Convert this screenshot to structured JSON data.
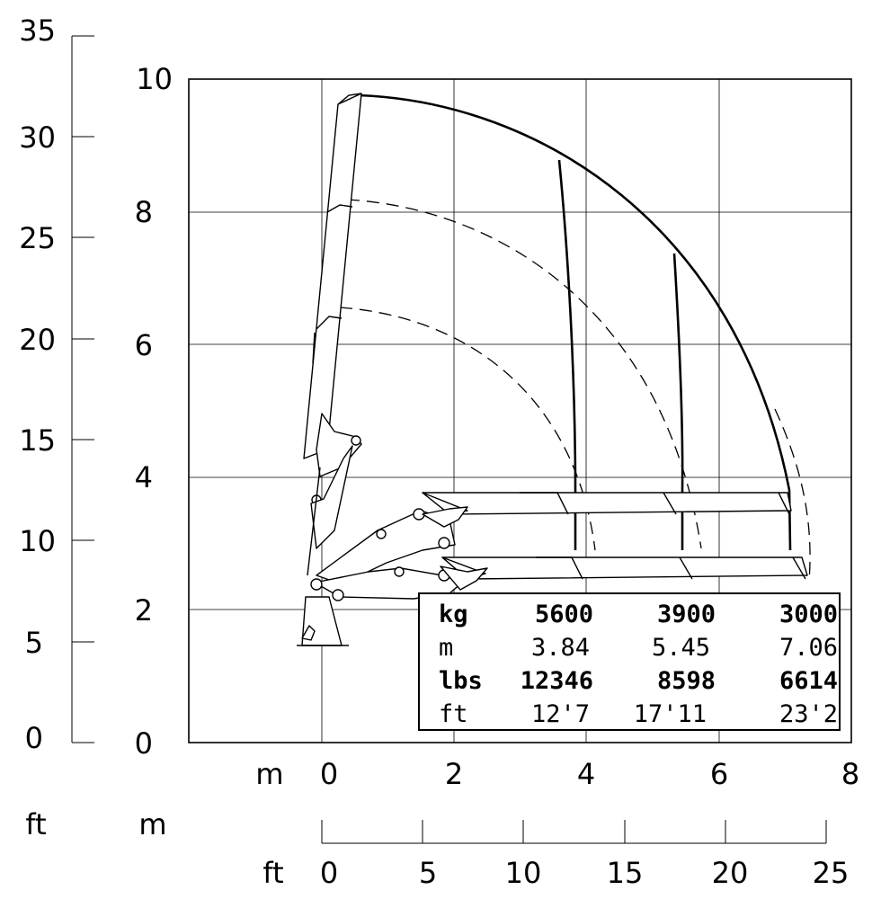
{
  "left_ft_axis": {
    "ticks": [
      "35",
      "30",
      "25",
      "20",
      "15",
      "10",
      "5",
      "0"
    ]
  },
  "left_m_axis": {
    "ticks": [
      "10",
      "8",
      "6",
      "4",
      "2",
      "0"
    ]
  },
  "bottom_m_axis": {
    "unit": "m",
    "ticks": [
      "0",
      "2",
      "4",
      "6",
      "8"
    ]
  },
  "bottom_ft_axis": {
    "unit_row1_left": "ft",
    "unit_row1_right": "m",
    "unit_row2": "ft",
    "ticks": [
      "0",
      "5",
      "10",
      "15",
      "20",
      "25"
    ]
  },
  "load_table": {
    "rows": [
      {
        "unit": "kg",
        "v1": "5600",
        "v2": "3900",
        "v3": "3000",
        "bold": true
      },
      {
        "unit": "m",
        "v1": "3.84",
        "v2": "5.45",
        "v3": "7.06",
        "bold": false
      },
      {
        "unit": "lbs",
        "v1": "12346",
        "v2": "8598",
        "v3": "6614",
        "bold": true
      },
      {
        "unit": "ft",
        "v1": "12'7",
        "v2": "17'11",
        "v3": "23'2",
        "bold": false
      }
    ]
  }
}
